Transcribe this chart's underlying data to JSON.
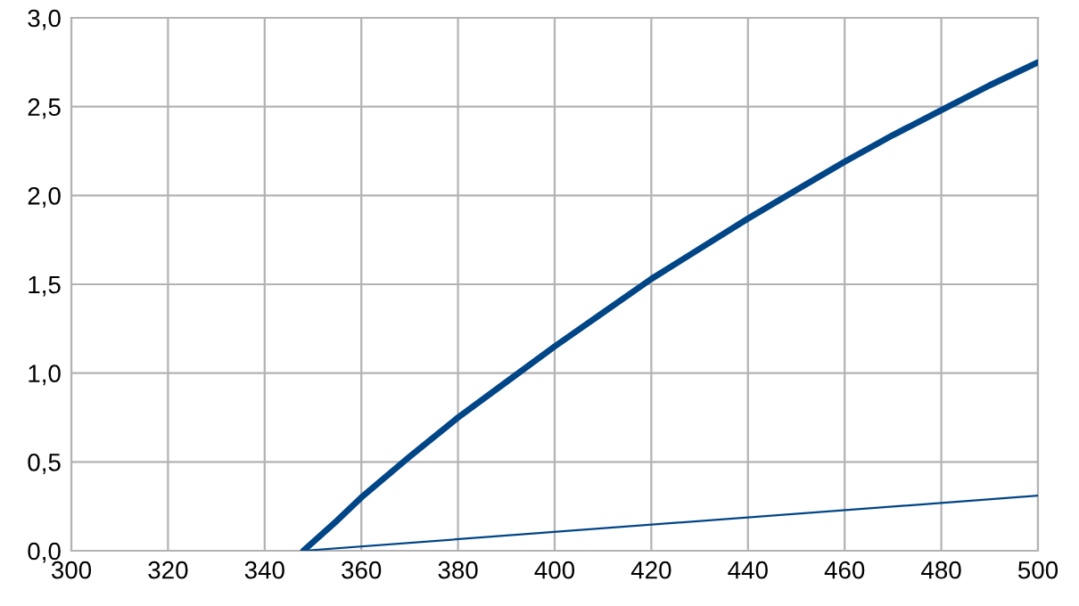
{
  "chart_data": {
    "type": "line",
    "series": [
      {
        "color": "#004586",
        "x": [
          348,
          355,
          360,
          370,
          380,
          390,
          400,
          410,
          420,
          430,
          440,
          450,
          460,
          470,
          480,
          490,
          500
        ],
        "values": [
          0,
          0.17,
          0.3,
          0.53,
          0.75,
          0.95,
          1.15,
          1.34,
          1.53,
          1.7,
          1.87,
          2.03,
          2.19,
          2.34,
          2.48,
          2.62,
          2.75
        ]
      },
      {
        "color": "#004586",
        "x": [
          348,
          500
        ],
        "values": [
          0,
          0.31
        ]
      }
    ],
    "xlim": [
      300,
      500
    ],
    "xticks": [
      300,
      320,
      340,
      360,
      380,
      400,
      420,
      440,
      460,
      480,
      500
    ],
    "ylim": [
      0,
      3
    ],
    "yticks": [
      {
        "value": 0,
        "label": "0,0"
      },
      {
        "value": 0.5,
        "label": "0,5"
      },
      {
        "value": 1,
        "label": "1,0"
      },
      {
        "value": 1.5,
        "label": "1,5"
      },
      {
        "value": 2,
        "label": "2,0"
      },
      {
        "value": 2.5,
        "label": "2,5"
      },
      {
        "value": 3,
        "label": "3,0"
      }
    ],
    "grid": true
  }
}
